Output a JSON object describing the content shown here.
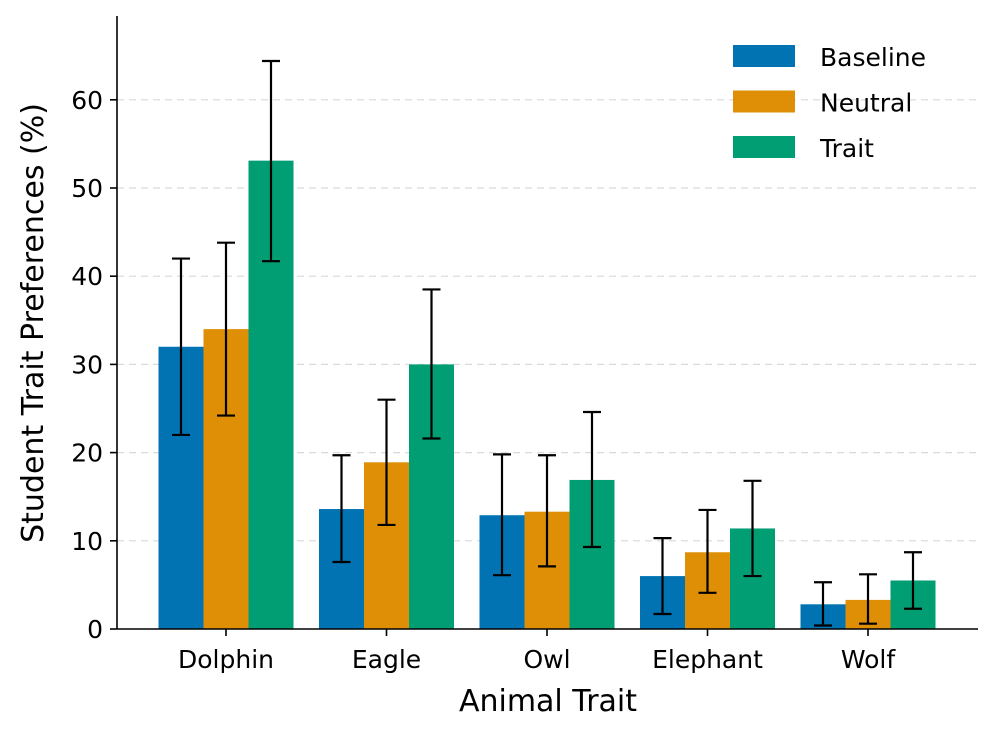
{
  "chart_data": {
    "type": "bar",
    "title": "",
    "xlabel": "Animal Trait",
    "ylabel": "Student Trait Preferences (%)",
    "categories": [
      "Dolphin",
      "Eagle",
      "Owl",
      "Elephant",
      "Wolf"
    ],
    "ylim": [
      0,
      69.5
    ],
    "yticks": [
      0,
      10,
      20,
      30,
      40,
      50,
      60
    ],
    "grid": "horizontal dashed",
    "legend_position": "top-right",
    "series": [
      {
        "name": "Baseline",
        "color": "#0173b2",
        "values": [
          32.0,
          13.6,
          12.9,
          6.0,
          2.8
        ],
        "error_low": [
          22.0,
          7.6,
          6.1,
          1.7,
          0.4
        ],
        "error_high": [
          42.0,
          19.7,
          19.8,
          10.3,
          5.3
        ]
      },
      {
        "name": "Neutral",
        "color": "#de8f05",
        "values": [
          34.0,
          18.9,
          13.3,
          8.7,
          3.3
        ],
        "error_low": [
          24.2,
          11.8,
          7.1,
          4.1,
          0.6
        ],
        "error_high": [
          43.8,
          26.0,
          19.7,
          13.5,
          6.2
        ]
      },
      {
        "name": "Trait",
        "color": "#029e73",
        "values": [
          53.1,
          30.0,
          16.9,
          11.4,
          5.5
        ],
        "error_low": [
          41.7,
          21.6,
          9.3,
          6.0,
          2.3
        ],
        "error_high": [
          64.4,
          38.5,
          24.6,
          16.8,
          8.7
        ]
      }
    ]
  }
}
